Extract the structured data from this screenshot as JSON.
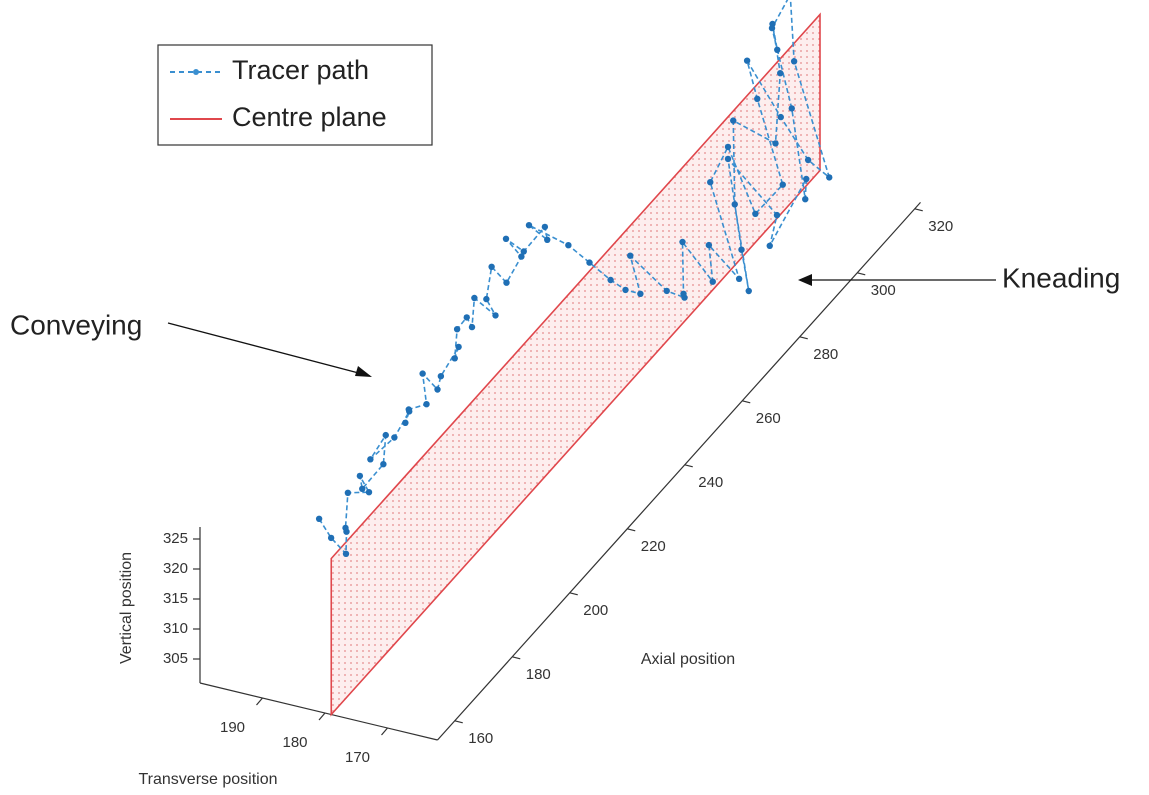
{
  "chart_data": {
    "type": "line3d",
    "xlabel": "Transverse position",
    "ylabel": "Axial position",
    "zlabel": "Vertical position",
    "xlim": [
      162,
      200
    ],
    "ylim": [
      154,
      322
    ],
    "zlim": [
      301,
      327
    ],
    "xticks": [
      170,
      180,
      190
    ],
    "yticks": [
      160,
      180,
      200,
      220,
      240,
      260,
      280,
      300,
      320
    ],
    "zticks": [
      305,
      310,
      315,
      320,
      325
    ],
    "legend": "upper left",
    "series": [
      {
        "name": "Tracer path",
        "color": "#3a8fd0",
        "x": [
          186,
          185,
          184,
          183,
          185,
          186,
          184,
          185,
          186,
          184,
          185,
          187,
          185,
          184,
          186,
          185,
          184,
          186,
          185,
          184,
          183,
          185,
          186,
          184,
          185,
          186,
          184,
          185,
          186,
          185,
          184,
          186,
          185,
          183,
          184,
          186,
          182,
          180,
          178,
          177,
          176,
          179,
          175,
          174,
          176,
          178,
          175,
          177,
          174,
          180,
          179,
          176,
          173,
          178,
          181,
          177,
          174,
          172,
          179,
          181,
          183,
          178,
          174,
          172,
          176,
          173,
          179,
          175,
          172,
          177,
          180,
          176,
          178,
          182,
          184
        ],
        "y": [
          165,
          167,
          170,
          168,
          172,
          175,
          178,
          177,
          180,
          183,
          186,
          185,
          189,
          192,
          195,
          194,
          198,
          201,
          204,
          203,
          207,
          210,
          213,
          212,
          216,
          219,
          222,
          221,
          225,
          228,
          231,
          230,
          234,
          237,
          240,
          238,
          243,
          246,
          249,
          252,
          255,
          258,
          262,
          266,
          270,
          274,
          278,
          281,
          285,
          288,
          292,
          295,
          298,
          300,
          303,
          306,
          309,
          312,
          315,
          318,
          316,
          312,
          308,
          304,
          300,
          296,
          292,
          288,
          284,
          290,
          296,
          302,
          308,
          314,
          320
        ],
        "z": [
          326,
          322,
          318,
          323,
          321,
          325,
          324,
          327,
          323,
          326,
          329,
          325,
          327,
          330,
          326,
          329,
          328,
          331,
          327,
          330,
          333,
          329,
          332,
          335,
          331,
          334,
          330,
          333,
          336,
          332,
          335,
          338,
          334,
          337,
          333,
          336,
          331,
          327,
          323,
          320,
          318,
          322,
          315,
          312,
          310,
          316,
          308,
          312,
          305,
          318,
          322,
          310,
          314,
          326,
          330,
          320,
          312,
          308,
          324,
          333,
          328,
          318,
          306,
          312,
          302,
          310,
          320,
          308,
          304,
          314,
          324,
          318,
          326,
          330,
          322
        ]
      }
    ],
    "plane": {
      "name": "Centre plane",
      "color": "#e0474c",
      "x": 179,
      "y": [
        154,
        324
      ],
      "z": [
        301,
        327
      ]
    },
    "annotations": [
      "Conveying",
      "Kneading"
    ]
  }
}
